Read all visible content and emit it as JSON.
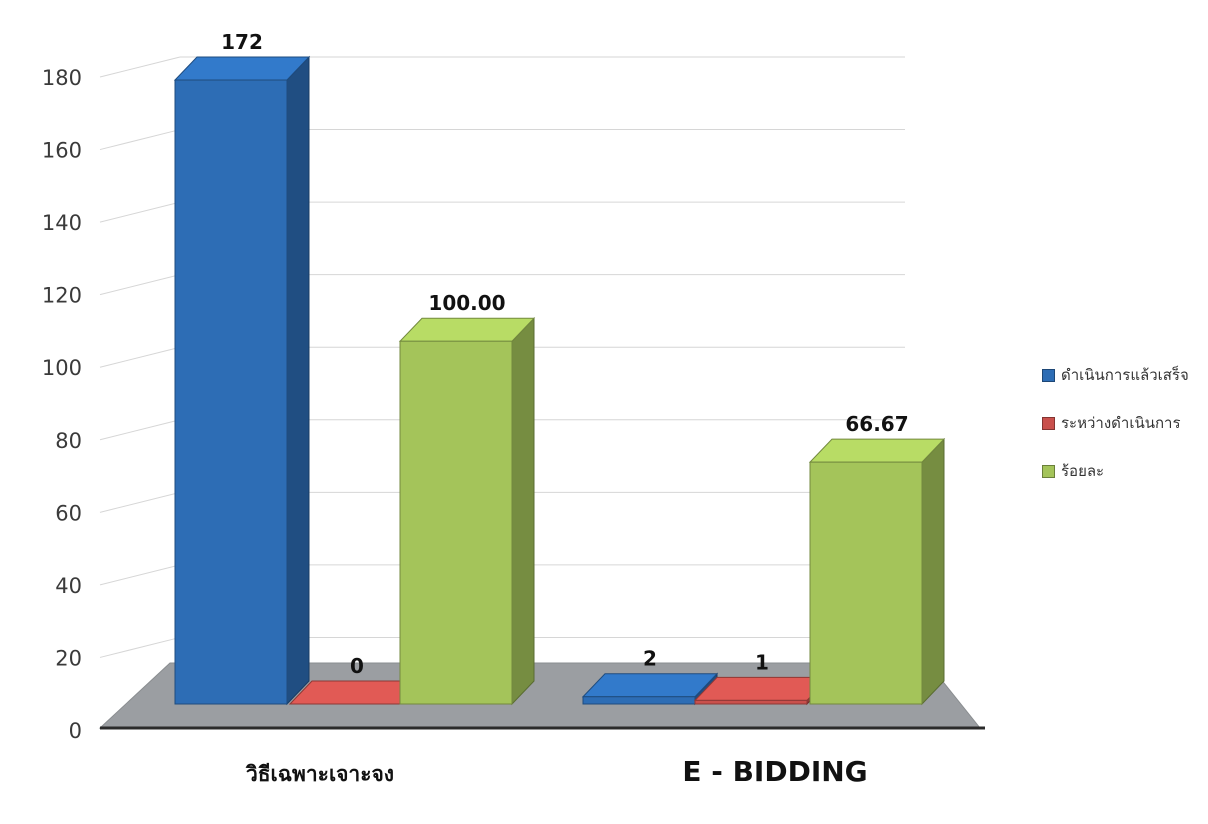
{
  "chart_data": {
    "type": "bar",
    "categories": [
      "วิธีเฉพาะเจาะจง",
      "E - BIDDING"
    ],
    "series": [
      {
        "name": "ดำเนินการแล้วเสร็จ",
        "values": [
          172,
          2
        ],
        "labels": [
          "172",
          "2"
        ],
        "color": "#2d6db5"
      },
      {
        "name": "ระหว่างดำเนินการ",
        "values": [
          0,
          1
        ],
        "labels": [
          "0",
          "1"
        ],
        "color": "#c9504c"
      },
      {
        "name": "ร้อยละ",
        "values": [
          100.0,
          66.67
        ],
        "labels": [
          "100.00",
          "66.67"
        ],
        "color": "#a4c45a"
      }
    ],
    "y_ticks": [
      "0",
      "20",
      "40",
      "60",
      "80",
      "100",
      "120",
      "140",
      "160",
      "180"
    ],
    "ylim": [
      0,
      180
    ],
    "grid": true,
    "legend_position": "right",
    "render_3d": true
  }
}
